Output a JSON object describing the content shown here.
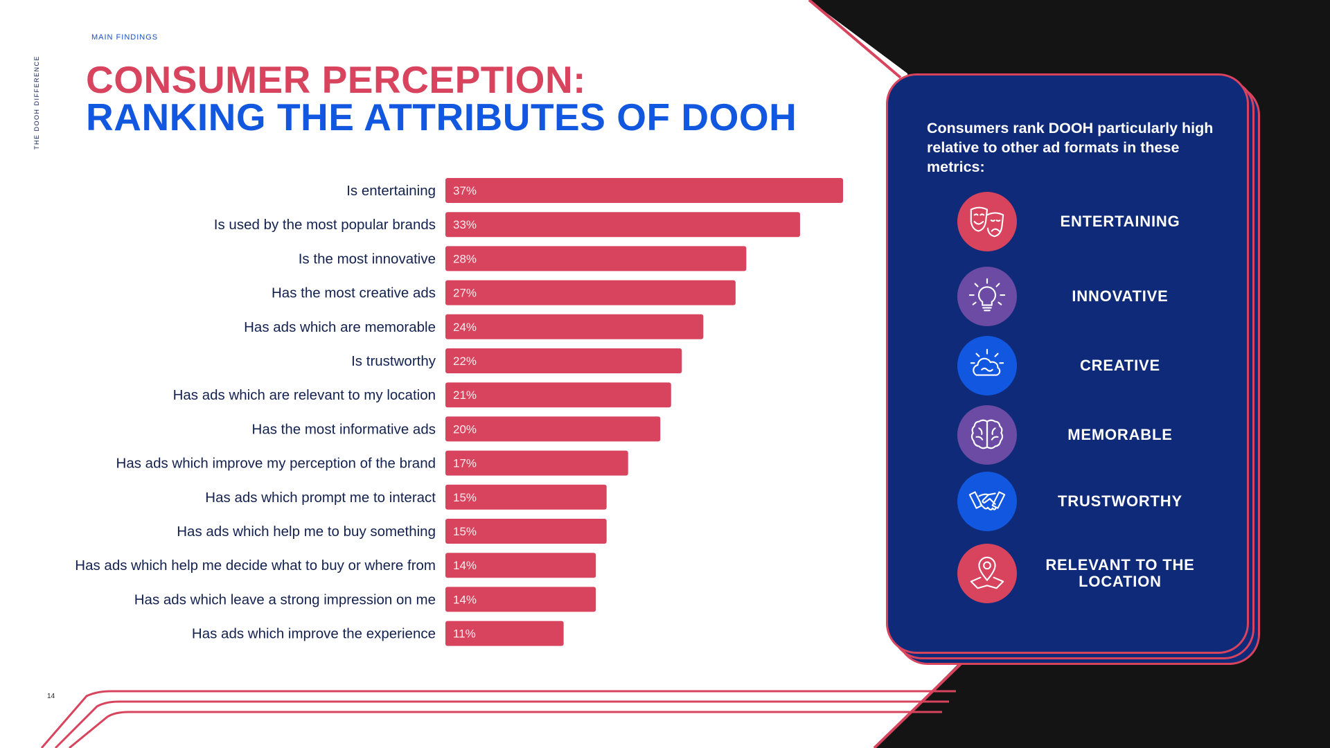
{
  "header": {
    "eyebrow": "MAIN FINDINGS",
    "side_label": "THE DOOH DIFFERENCE",
    "title_line1": "CONSUMER PERCEPTION:",
    "title_line2": "RANKING THE ATTRIBUTES OF DOOH"
  },
  "page_number": "14",
  "colors": {
    "bar": "#d8435e",
    "title_red": "#d8435e",
    "title_blue": "#1257e0",
    "panel_bg": "#0e2a78"
  },
  "chart_data": {
    "type": "bar",
    "orientation": "horizontal",
    "title": "CONSUMER PERCEPTION: RANKING THE ATTRIBUTES OF DOOH",
    "xlabel": "",
    "ylabel": "",
    "xlim": [
      0,
      37
    ],
    "categories": [
      "Is entertaining",
      "Is used by the most popular brands",
      "Is the most innovative",
      "Has the most creative ads",
      "Has ads which are memorable",
      "Is trustworthy",
      "Has ads which are relevant to my location",
      "Has the most informative ads",
      "Has ads which improve my perception of the brand",
      "Has ads which prompt me to interact",
      "Has ads which help me to buy something",
      "Has ads which help me decide what to buy or where from",
      "Has ads which leave a strong impression on me",
      "Has ads which improve the experience"
    ],
    "values": [
      37,
      33,
      28,
      27,
      24,
      22,
      21,
      20,
      17,
      15,
      15,
      14,
      14,
      11
    ],
    "value_labels": [
      "37%",
      "33%",
      "28%",
      "27%",
      "24%",
      "22%",
      "21%",
      "20%",
      "17%",
      "15%",
      "15%",
      "14%",
      "14%",
      "11%"
    ]
  },
  "panel": {
    "intro": "Consumers rank DOOH particularly high relative to other ad formats in these metrics:",
    "metrics": [
      {
        "label": "ENTERTAINING",
        "icon": "theater-masks-icon",
        "color": "#d8435e"
      },
      {
        "label": "INNOVATIVE",
        "icon": "lightbulb-icon",
        "color": "#6b4ba3"
      },
      {
        "label": "CREATIVE",
        "icon": "creative-cloud-icon",
        "color": "#1257e0"
      },
      {
        "label": "MEMORABLE",
        "icon": "brain-icon",
        "color": "#6b4ba3"
      },
      {
        "label": "TRUSTWORTHY",
        "icon": "handshake-icon",
        "color": "#1257e0"
      },
      {
        "label": "RELEVANT TO THE LOCATION",
        "icon": "location-pin-icon",
        "color": "#d8435e"
      }
    ]
  }
}
